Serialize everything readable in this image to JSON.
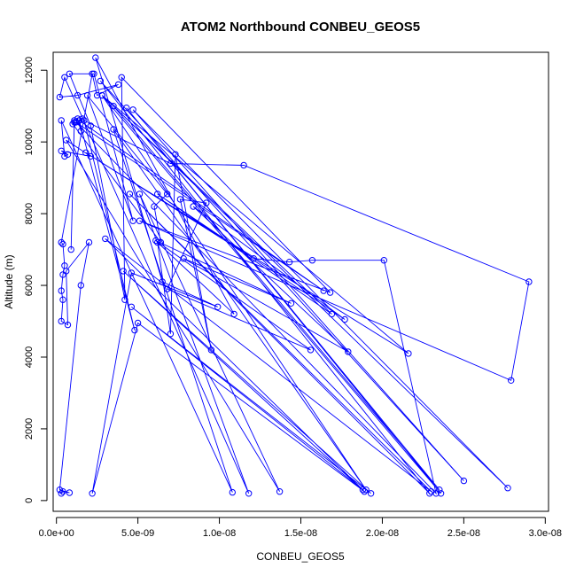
{
  "chart_data": {
    "type": "line",
    "title": "ATOM2 Northbound CONBEU_GEOS5",
    "xlabel": "CONBEU_GEOS5",
    "ylabel": "Altitude (m)",
    "xlim": [
      -2e-10,
      3.02e-08
    ],
    "ylim": [
      -300,
      12500
    ],
    "xticks": [
      0,
      5e-09,
      1e-08,
      1.5e-08,
      2e-08,
      2.5e-08,
      3e-08
    ],
    "xtick_labels": [
      "0.0e+00",
      "5.0e-09",
      "1.0e-08",
      "1.5e-08",
      "2.0e-08",
      "2.5e-08",
      "3.0e-08"
    ],
    "yticks": [
      0,
      2000,
      4000,
      6000,
      8000,
      10000,
      12000
    ],
    "ytick_labels": [
      "0",
      "2000",
      "4000",
      "6000",
      "8000",
      "10000",
      "12000"
    ],
    "grid": false,
    "series": [
      {
        "color": "#0000ff",
        "marker": "open-circle",
        "x": [
          3e-10,
          4e-10,
          8e-10,
          2e-10,
          1.5e-09,
          2e-09,
          6e-10,
          7e-10,
          3e-10,
          4e-10,
          3e-10,
          4e-10,
          5e-10,
          4e-10,
          3e-10,
          2.2e-09,
          2.5e-09,
          3.8e-09,
          1.3e-09,
          2e-10,
          5e-10,
          1.18e-08,
          5.1e-09,
          1.37e-08,
          6e-10,
          2.1e-09,
          3e-10,
          7e-10,
          5e-10,
          3e-10,
          1.08e-08,
          3.5e-09,
          1.9e-08,
          2.8e-09,
          2.36e-08,
          4.3e-09,
          2.35e-08,
          3.5e-09,
          2.77e-08,
          4.7e-09,
          2.5e-08,
          2.7e-09,
          2.29e-08,
          4.5e-09,
          2.3e-08,
          3e-09,
          1.88e-08,
          4.6e-09,
          1.93e-08,
          4.1e-09,
          1.89e-08,
          5e-09,
          2.2e-09,
          4.6e-09,
          9.9e-09,
          6.5e-09,
          2.4e-09,
          1.09e-08,
          6.2e-09,
          7e-09,
          7.3e-09,
          9.5e-09,
          7.6e-09,
          9.2e-09,
          6.8e-09,
          1.56e-08,
          6.1e-09,
          1.44e-08,
          7.8e-09,
          1.79e-08,
          8.4e-09,
          1.77e-08,
          6.2e-09,
          1.69e-08,
          2.8e-09,
          2.16e-08,
          1.8e-09,
          1.21e-08,
          1.43e-08,
          1.57e-08,
          2.01e-08,
          2.33e-08,
          1.2e-09,
          1.64e-08,
          1.4e-09,
          4.8e-09,
          1.7e-09,
          7e-09,
          1.15e-08,
          2.9e-08,
          2.79e-08,
          5.1e-09,
          1.68e-08,
          4e-09,
          4.2e-09,
          2.1e-09,
          8e-10,
          2.3e-09,
          4.7e-09,
          1.9e-09,
          6.8e-09,
          6e-09,
          6.4e-09,
          1e-09,
          1.1e-09,
          9e-10,
          1.1e-09,
          1.3e-09,
          1.5e-09,
          1.4e-09,
          1.6e-09
        ],
        "y": [
          200,
          250,
          220,
          300,
          6000,
          7200,
          6400,
          4900,
          5000,
          5600,
          5850,
          6300,
          6550,
          7150,
          7200,
          11900,
          11300,
          11600,
          11300,
          11250,
          11800,
          200,
          8550,
          250,
          10050,
          9600,
          9750,
          9650,
          9600,
          10600,
          230,
          10350,
          300,
          11300,
          200,
          10950,
          300,
          11000,
          350,
          10900,
          550,
          11700,
          200,
          8550,
          250,
          7300,
          300,
          5400,
          200,
          6400,
          250,
          4950,
          200,
          6350,
          5400,
          6100,
          12350,
          5200,
          7200,
          4650,
          9650,
          4200,
          8400,
          8300,
          5900,
          4200,
          7250,
          5500,
          6750,
          4150,
          8200,
          5050,
          8550,
          5200,
          11300,
          4100,
          9700,
          6750,
          6650,
          6700,
          6700,
          200,
          10550,
          5850,
          10600,
          4750,
          10600,
          9400,
          9350,
          6100,
          3350,
          7800,
          5800,
          11800,
          5600,
          10450,
          11900,
          11900,
          7800,
          11300,
          8550,
          8200,
          7200,
          10500,
          10550,
          7000,
          10600,
          10650,
          10300,
          10600,
          10650
        ]
      }
    ]
  }
}
